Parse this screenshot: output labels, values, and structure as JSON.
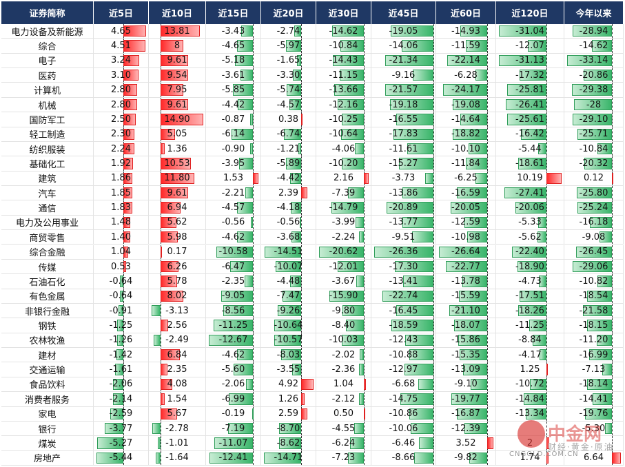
{
  "chart_data": {
    "type": "table",
    "header_name": "证券简称",
    "columns": [
      "近5日",
      "近10日",
      "近15日",
      "近20日",
      "近30日",
      "近45日",
      "近60日",
      "近120日",
      "今年以来"
    ],
    "rows": [
      {
        "name": "电力设备及新能源",
        "values": [
          4.65,
          13.81,
          -3.43,
          -2.74,
          -14.62,
          -19.05,
          -14.93,
          -31.04,
          -28.94
        ]
      },
      {
        "name": "综合",
        "values": [
          4.51,
          8.0,
          -4.65,
          -5.97,
          -10.84,
          -14.06,
          -11.59,
          -12.07,
          -14.62
        ]
      },
      {
        "name": "电子",
        "values": [
          3.24,
          9.61,
          -5.18,
          -1.65,
          -14.43,
          -21.34,
          -22.14,
          -31.13,
          -33.14
        ]
      },
      {
        "name": "医药",
        "values": [
          3.1,
          9.54,
          -3.61,
          -3.3,
          -11.15,
          -9.16,
          -6.28,
          -17.32,
          -20.86
        ]
      },
      {
        "name": "计算机",
        "values": [
          2.8,
          7.95,
          -5.85,
          -5.74,
          -13.66,
          -21.57,
          -24.17,
          -25.81,
          -29.38
        ]
      },
      {
        "name": "机械",
        "values": [
          2.8,
          9.61,
          -4.42,
          -4.57,
          -12.16,
          -19.18,
          -19.08,
          -26.41,
          -28.0
        ]
      },
      {
        "name": "国防军工",
        "values": [
          2.5,
          14.9,
          -0.87,
          0.38,
          -10.25,
          -16.55,
          -14.64,
          -25.61,
          -29.1
        ]
      },
      {
        "name": "轻工制造",
        "values": [
          2.3,
          5.05,
          -6.14,
          -6.74,
          -10.64,
          -17.83,
          -18.82,
          -16.42,
          -25.71
        ]
      },
      {
        "name": "纺织服装",
        "values": [
          2.24,
          1.36,
          -0.9,
          -1.21,
          -4.06,
          -11.61,
          -10.1,
          -5.44,
          -10.84
        ]
      },
      {
        "name": "基础化工",
        "values": [
          1.92,
          10.53,
          -3.95,
          -5.89,
          -10.2,
          -15.27,
          -11.84,
          -18.61,
          -20.32
        ]
      },
      {
        "name": "建筑",
        "values": [
          1.86,
          11.8,
          1.53,
          -4.42,
          2.16,
          -3.73,
          -6.25,
          10.19,
          0.12
        ]
      },
      {
        "name": "汽车",
        "values": [
          1.85,
          9.61,
          -2.21,
          2.39,
          -7.39,
          -13.86,
          -16.59,
          -27.41,
          -25.8
        ]
      },
      {
        "name": "通信",
        "values": [
          1.83,
          6.94,
          -4.57,
          -4.18,
          -14.79,
          -20.89,
          -20.05,
          -20.06,
          -25.24
        ]
      },
      {
        "name": "电力及公用事业",
        "values": [
          1.48,
          5.62,
          -0.56,
          -0.56,
          -3.99,
          -13.77,
          -12.59,
          -5.33,
          -16.18
        ]
      },
      {
        "name": "商贸零售",
        "values": [
          1.4,
          5.98,
          -4.62,
          -3.68,
          -2.24,
          -9.51,
          -10.98,
          -5.62,
          -9.08
        ]
      },
      {
        "name": "综合金融",
        "values": [
          1.04,
          0.17,
          -10.58,
          -14.51,
          -20.62,
          -26.36,
          -26.64,
          -22.4,
          -26.45
        ]
      },
      {
        "name": "传媒",
        "values": [
          0.53,
          6.26,
          -6.47,
          -10.07,
          -12.01,
          -17.3,
          -22.77,
          -18.9,
          -29.06
        ]
      },
      {
        "name": "石油石化",
        "values": [
          -0.64,
          5.78,
          -2.35,
          -4.48,
          -3.67,
          -13.41,
          -13.78,
          -4.73,
          -10.82
        ]
      },
      {
        "name": "有色金属",
        "values": [
          -0.64,
          8.02,
          -9.05,
          -7.47,
          -15.9,
          -22.74,
          -15.59,
          -17.51,
          -18.54
        ]
      },
      {
        "name": "非银行金融",
        "values": [
          -0.91,
          -3.13,
          -8.56,
          -9.26,
          -9.8,
          -16.45,
          -21.1,
          -18.26,
          -21.58
        ]
      },
      {
        "name": "钢铁",
        "values": [
          -1.25,
          2.56,
          -11.25,
          -10.64,
          -8.4,
          -18.59,
          -18.07,
          -11.25,
          -18.15
        ]
      },
      {
        "name": "农林牧渔",
        "values": [
          -1.26,
          -2.49,
          -12.67,
          -10.57,
          -10.03,
          -12.43,
          -15.86,
          -8.84,
          -11.2
        ]
      },
      {
        "name": "建材",
        "values": [
          -1.42,
          6.84,
          -4.62,
          -8.03,
          -2.02,
          -10.88,
          -15.35,
          -4.17,
          -16.99
        ]
      },
      {
        "name": "交通运输",
        "values": [
          -1.61,
          2.35,
          -5.6,
          -3.55,
          -2.36,
          -12.97,
          -13.09,
          1.25,
          -7.13
        ]
      },
      {
        "name": "食品饮料",
        "values": [
          -2.06,
          4.08,
          -2.06,
          4.92,
          1.04,
          -6.68,
          -9.1,
          -10.72,
          -18.14
        ]
      },
      {
        "name": "消费者服务",
        "values": [
          -2.14,
          1.54,
          -6.99,
          1.26,
          -2.12,
          -14.75,
          -19.77,
          -14.84,
          -14.41
        ]
      },
      {
        "name": "家电",
        "values": [
          -2.59,
          5.67,
          -0.19,
          2.59,
          0.5,
          -10.86,
          -16.87,
          -13.34,
          -19.76
        ]
      },
      {
        "name": "银行",
        "values": [
          -3.77,
          -2.78,
          -7.19,
          -8.7,
          -4.55,
          -10.06,
          -12.39,
          null,
          -5.3
        ]
      },
      {
        "name": "煤炭",
        "values": [
          -5.27,
          -1.01,
          -11.07,
          -8.62,
          -6.24,
          -6.46,
          3.52,
          2,
          null
        ]
      },
      {
        "name": "房地产",
        "values": [
          -5.44,
          -1.64,
          -12.41,
          -14.71,
          -7.23,
          -8.66,
          -9.82,
          1.74,
          6.64
        ]
      }
    ],
    "colors": {
      "positive": "#ff2a2a",
      "negative": "#39b56a",
      "header": "#1f3864"
    }
  },
  "watermark": {
    "cn": "中金网",
    "en": "CNGOLD.COM.CN",
    "sub": "财经·黄金·原油"
  }
}
